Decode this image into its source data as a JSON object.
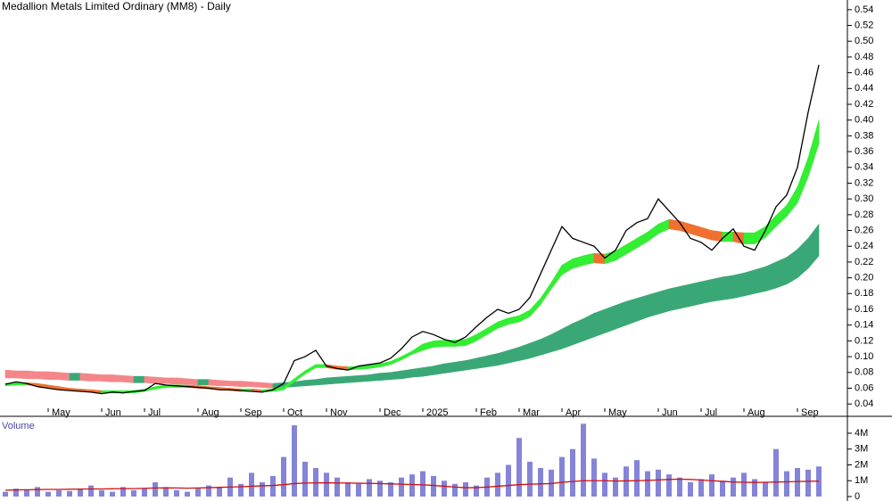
{
  "chart_data": [
    {
      "type": "line",
      "title": "Medallion Metals Limited Ordinary (MM8) - Daily",
      "categories": [
        null,
        null,
        null,
        null,
        "May",
        null,
        null,
        null,
        null,
        "Jun",
        null,
        null,
        null,
        "Jul",
        null,
        null,
        null,
        null,
        "Aug",
        null,
        null,
        null,
        "Sep",
        null,
        null,
        null,
        "Oct",
        null,
        null,
        null,
        "Nov",
        null,
        null,
        null,
        null,
        "Dec",
        null,
        null,
        null,
        "2025",
        null,
        null,
        null,
        null,
        "Feb",
        null,
        null,
        null,
        "Mar",
        null,
        null,
        null,
        "Apr",
        null,
        null,
        null,
        "May",
        null,
        null,
        null,
        null,
        "Jun",
        null,
        null,
        null,
        "Jul",
        null,
        null,
        null,
        "Aug",
        null,
        null,
        null,
        null,
        "Sep",
        null,
        null
      ],
      "values": [
        0.065,
        0.068,
        0.066,
        0.062,
        0.06,
        0.058,
        0.057,
        0.056,
        0.055,
        0.053,
        0.055,
        0.054,
        0.056,
        0.057,
        0.066,
        0.064,
        0.063,
        0.062,
        0.061,
        0.06,
        0.058,
        0.058,
        0.057,
        0.056,
        0.055,
        0.058,
        0.066,
        0.095,
        0.1,
        0.108,
        0.088,
        0.085,
        0.083,
        0.088,
        0.09,
        0.092,
        0.098,
        0.11,
        0.125,
        0.132,
        0.128,
        0.122,
        0.118,
        0.125,
        0.138,
        0.15,
        0.16,
        0.155,
        0.16,
        0.175,
        0.205,
        0.235,
        0.265,
        0.25,
        0.245,
        0.24,
        0.225,
        0.235,
        0.26,
        0.27,
        0.275,
        0.3,
        0.285,
        0.27,
        0.25,
        0.245,
        0.235,
        0.25,
        0.262,
        0.24,
        0.235,
        0.26,
        0.29,
        0.305,
        0.34,
        0.41,
        0.47
      ],
      "color": "#000000",
      "bands": [
        {
          "rising_color": "#3aa876",
          "falling_color": "#f4868a",
          "top": [
            0.083,
            0.082,
            0.082,
            0.081,
            0.081,
            0.08,
            0.079,
            0.079,
            0.078,
            0.077,
            0.077,
            0.076,
            0.075,
            0.075,
            0.074,
            0.073,
            0.073,
            0.072,
            0.071,
            0.071,
            0.07,
            0.069,
            0.069,
            0.068,
            0.067,
            0.066,
            0.067,
            0.068,
            0.07,
            0.071,
            0.073,
            0.074,
            0.075,
            0.076,
            0.077,
            0.079,
            0.08,
            0.082,
            0.084,
            0.086,
            0.088,
            0.091,
            0.093,
            0.095,
            0.098,
            0.101,
            0.104,
            0.108,
            0.112,
            0.117,
            0.122,
            0.128,
            0.135,
            0.142,
            0.148,
            0.155,
            0.16,
            0.165,
            0.17,
            0.174,
            0.178,
            0.182,
            0.186,
            0.189,
            0.192,
            0.195,
            0.198,
            0.201,
            0.203,
            0.206,
            0.21,
            0.214,
            0.22,
            0.226,
            0.236,
            0.25,
            0.268
          ],
          "bottom": [
            0.073,
            0.073,
            0.072,
            0.072,
            0.071,
            0.071,
            0.07,
            0.07,
            0.069,
            0.069,
            0.068,
            0.068,
            0.067,
            0.067,
            0.066,
            0.066,
            0.065,
            0.065,
            0.064,
            0.064,
            0.063,
            0.063,
            0.062,
            0.062,
            0.061,
            0.06,
            0.061,
            0.062,
            0.063,
            0.064,
            0.065,
            0.066,
            0.067,
            0.068,
            0.069,
            0.07,
            0.071,
            0.072,
            0.074,
            0.075,
            0.077,
            0.079,
            0.081,
            0.083,
            0.085,
            0.087,
            0.089,
            0.092,
            0.095,
            0.098,
            0.102,
            0.106,
            0.11,
            0.115,
            0.12,
            0.125,
            0.13,
            0.135,
            0.14,
            0.145,
            0.15,
            0.154,
            0.158,
            0.161,
            0.164,
            0.167,
            0.17,
            0.172,
            0.174,
            0.177,
            0.18,
            0.183,
            0.187,
            0.192,
            0.2,
            0.212,
            0.228
          ]
        },
        {
          "rising_color": "#33ee33",
          "falling_color": "#f07030",
          "top": [
            0.066,
            0.067,
            0.067,
            0.066,
            0.064,
            0.062,
            0.06,
            0.059,
            0.058,
            0.057,
            0.057,
            0.057,
            0.057,
            0.059,
            0.062,
            0.064,
            0.064,
            0.064,
            0.063,
            0.062,
            0.061,
            0.06,
            0.059,
            0.059,
            0.058,
            0.059,
            0.062,
            0.072,
            0.082,
            0.09,
            0.09,
            0.088,
            0.087,
            0.088,
            0.089,
            0.091,
            0.094,
            0.1,
            0.107,
            0.116,
            0.12,
            0.121,
            0.121,
            0.122,
            0.128,
            0.136,
            0.144,
            0.149,
            0.152,
            0.159,
            0.174,
            0.194,
            0.216,
            0.224,
            0.228,
            0.231,
            0.23,
            0.234,
            0.242,
            0.25,
            0.258,
            0.268,
            0.274,
            0.272,
            0.268,
            0.264,
            0.26,
            0.258,
            0.258,
            0.257,
            0.257,
            0.265,
            0.279,
            0.292,
            0.315,
            0.352,
            0.4
          ],
          "bottom": [
            0.063,
            0.064,
            0.064,
            0.063,
            0.061,
            0.059,
            0.057,
            0.056,
            0.055,
            0.054,
            0.054,
            0.054,
            0.054,
            0.056,
            0.059,
            0.061,
            0.061,
            0.061,
            0.06,
            0.059,
            0.058,
            0.057,
            0.056,
            0.056,
            0.055,
            0.056,
            0.058,
            0.068,
            0.078,
            0.086,
            0.086,
            0.084,
            0.083,
            0.084,
            0.085,
            0.087,
            0.09,
            0.096,
            0.103,
            0.108,
            0.112,
            0.113,
            0.113,
            0.114,
            0.12,
            0.128,
            0.136,
            0.141,
            0.144,
            0.151,
            0.166,
            0.186,
            0.204,
            0.212,
            0.216,
            0.219,
            0.218,
            0.222,
            0.23,
            0.238,
            0.246,
            0.256,
            0.262,
            0.26,
            0.256,
            0.252,
            0.248,
            0.246,
            0.246,
            0.243,
            0.243,
            0.251,
            0.265,
            0.278,
            0.295,
            0.328,
            0.37
          ]
        }
      ],
      "ylim": [
        0.03,
        0.55
      ],
      "yticks": [
        0.04,
        0.06,
        0.08,
        {
          "value": 0.1,
          "label": "0.10"
        },
        0.12,
        0.14,
        0.16,
        0.18,
        {
          "value": 0.2,
          "label": "0.20"
        },
        0.22,
        0.24,
        0.26,
        0.28,
        {
          "value": 0.3,
          "label": "0.30"
        },
        0.32,
        0.34,
        0.36,
        0.38,
        {
          "value": 0.4,
          "label": "0.40"
        },
        0.42,
        0.44,
        0.46,
        0.48,
        {
          "value": 0.5,
          "label": "0.50"
        },
        0.52,
        0.54
      ]
    },
    {
      "type": "bar",
      "title": "Volume",
      "color": "#8484d8",
      "ma_color": "#d01010",
      "values": [
        300000,
        500000,
        400000,
        600000,
        300000,
        400000,
        350000,
        500000,
        700000,
        400000,
        300000,
        600000,
        400000,
        500000,
        900000,
        600000,
        400000,
        300000,
        500000,
        700000,
        600000,
        1200000,
        800000,
        1500000,
        900000,
        1300000,
        2500000,
        4500000,
        2200000,
        1800000,
        1500000,
        1200000,
        900000,
        800000,
        1100000,
        1000000,
        900000,
        1200000,
        1400000,
        1600000,
        1300000,
        1000000,
        800000,
        900000,
        700000,
        1200000,
        1500000,
        2000000,
        3700000,
        2200000,
        1800000,
        1700000,
        2500000,
        3000000,
        4600000,
        2400000,
        1500000,
        1200000,
        1900000,
        2300000,
        1600000,
        1700000,
        1400000,
        1200000,
        900000,
        1100000,
        1400000,
        1000000,
        1200000,
        1500000,
        1100000,
        900000,
        3000000,
        1600000,
        1800000,
        1700000,
        1900000
      ],
      "moving_average": [
        400000,
        420000,
        430000,
        440000,
        450000,
        450000,
        460000,
        470000,
        480000,
        480000,
        490000,
        500000,
        500000,
        520000,
        540000,
        550000,
        540000,
        530000,
        540000,
        560000,
        580000,
        600000,
        620000,
        650000,
        680000,
        700000,
        750000,
        820000,
        850000,
        860000,
        870000,
        860000,
        850000,
        840000,
        830000,
        820000,
        800000,
        780000,
        760000,
        740000,
        700000,
        650000,
        600000,
        560000,
        560000,
        600000,
        650000,
        700000,
        750000,
        780000,
        800000,
        820000,
        900000,
        950000,
        1000000,
        1000000,
        1000000,
        980000,
        990000,
        1000000,
        1020000,
        1050000,
        1080000,
        1100000,
        1080000,
        1050000,
        1000000,
        960000,
        920000,
        900000,
        890000,
        900000,
        920000,
        930000,
        950000,
        960000,
        980000
      ],
      "ylim": [
        0,
        4900000
      ],
      "yticks": [
        0,
        {
          "value": 1000000,
          "label": "1M"
        },
        {
          "value": 2000000,
          "label": "2M"
        },
        {
          "value": 3000000,
          "label": "3M"
        },
        {
          "value": 4000000,
          "label": "4M"
        }
      ]
    }
  ]
}
